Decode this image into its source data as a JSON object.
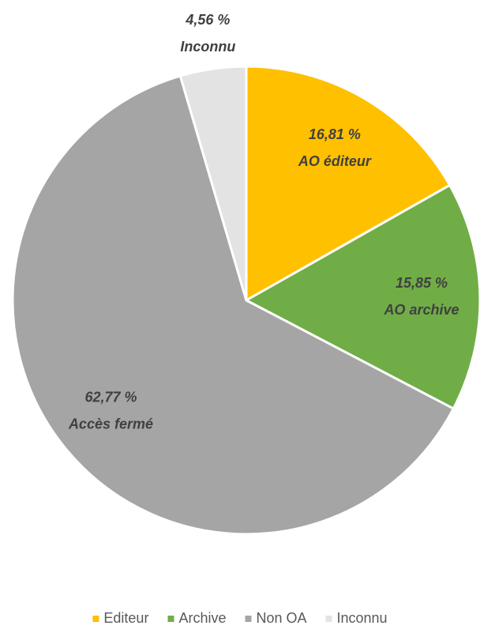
{
  "chart_data": {
    "type": "pie",
    "categories": [
      "Editeur",
      "Archive",
      "Non OA",
      "Inconnu"
    ],
    "values": [
      16.81,
      15.85,
      62.77,
      4.56
    ],
    "value_labels": [
      "16,81 %",
      "15,85 %",
      "62,77 %",
      "4,56 %"
    ],
    "slice_labels": [
      "AO éditeur",
      "AO archive",
      "Accès fermé",
      "Inconnu"
    ],
    "colors": [
      "#FFC000",
      "#70AD47",
      "#A5A5A5",
      "#E4E3E3"
    ],
    "legend": "bottom"
  }
}
